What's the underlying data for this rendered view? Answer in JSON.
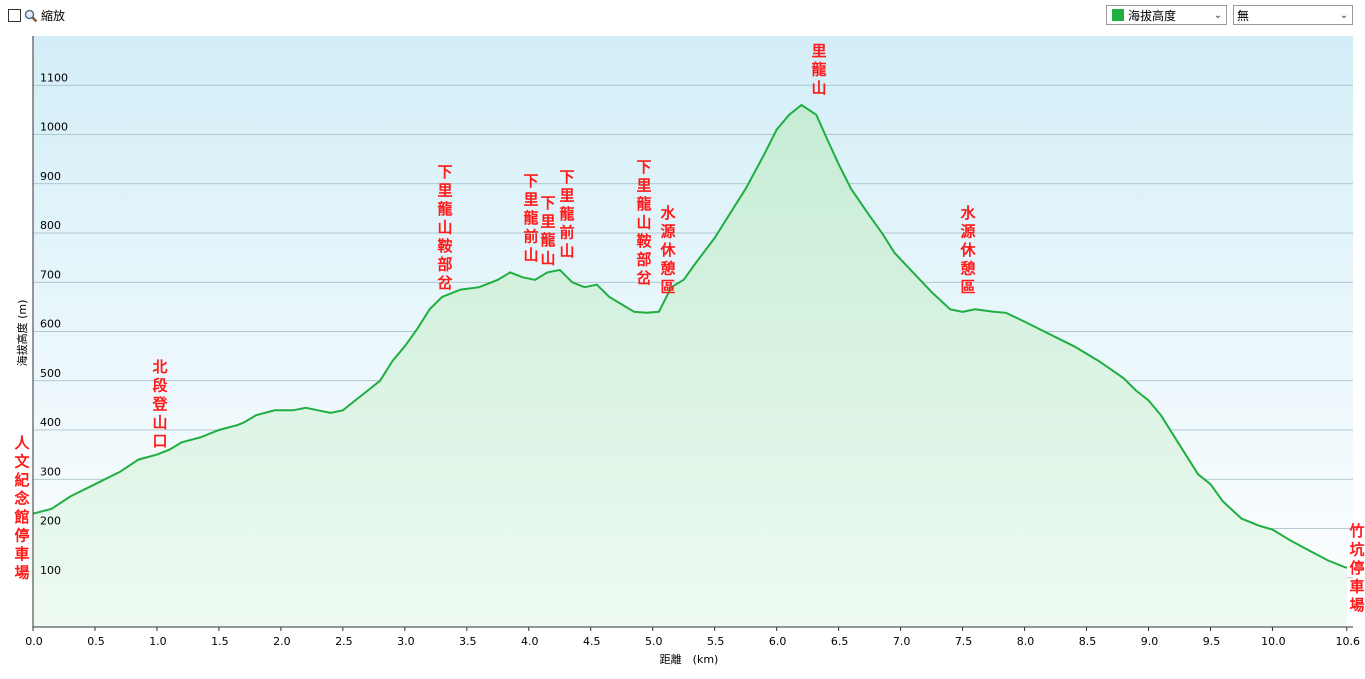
{
  "toolbar": {
    "zoom_label": "縮放",
    "metric_select": "海拔高度",
    "metric_color": "#1fae40",
    "secondary_select": "無"
  },
  "chart_data": {
    "type": "area",
    "xlabel": "距離　(km)",
    "ylabel": "海拔高度 (m)",
    "xlim": [
      0,
      10.65
    ],
    "ylim": [
      0,
      1200
    ],
    "x_ticks": [
      "0.0",
      "0.5",
      "1.0",
      "1.5",
      "2.0",
      "2.5",
      "3.0",
      "3.5",
      "4.0",
      "4.5",
      "5.0",
      "5.5",
      "6.0",
      "6.5",
      "7.0",
      "7.5",
      "8.0",
      "8.5",
      "9.0",
      "9.5",
      "10.0",
      "10.6"
    ],
    "y_ticks": [
      "100",
      "200",
      "300",
      "400",
      "500",
      "600",
      "700",
      "800",
      "900",
      "1000",
      "1100"
    ],
    "line_color": "#1fae40",
    "grid": true,
    "series": [
      {
        "x": [
          0,
          0.15,
          0.3,
          0.5,
          0.7,
          0.85,
          1.0,
          1.1,
          1.2,
          1.35,
          1.5,
          1.65,
          1.7,
          1.8,
          1.95,
          2.0,
          2.1,
          2.2,
          2.3,
          2.4,
          2.5,
          2.6,
          2.7,
          2.8,
          2.9,
          3.0,
          3.1,
          3.2,
          3.3,
          3.45,
          3.6,
          3.75,
          3.85,
          3.95,
          4.05,
          4.15,
          4.25,
          4.35,
          4.45,
          4.55,
          4.65,
          4.75,
          4.85,
          4.95,
          5.05,
          5.15,
          5.25,
          5.35,
          5.5,
          5.6,
          5.75,
          5.9,
          6.0,
          6.1,
          6.2,
          6.32,
          6.4,
          6.5,
          6.6,
          6.75,
          6.85,
          6.95,
          7.1,
          7.25,
          7.4,
          7.5,
          7.6,
          7.75,
          7.85,
          8.0,
          8.2,
          8.4,
          8.6,
          8.8,
          8.9,
          9.0,
          9.1,
          9.25,
          9.4,
          9.5,
          9.6,
          9.75,
          9.9,
          10.0,
          10.15,
          10.3,
          10.45,
          10.6
        ],
        "y": [
          230,
          240,
          265,
          290,
          315,
          340,
          350,
          360,
          375,
          385,
          400,
          410,
          415,
          430,
          440,
          440,
          440,
          445,
          440,
          435,
          440,
          460,
          480,
          500,
          540,
          570,
          605,
          645,
          670,
          685,
          690,
          705,
          720,
          710,
          705,
          720,
          725,
          700,
          690,
          695,
          670,
          655,
          640,
          638,
          640,
          690,
          705,
          740,
          790,
          830,
          890,
          960,
          1010,
          1040,
          1060,
          1040,
          995,
          940,
          890,
          835,
          800,
          760,
          720,
          680,
          645,
          640,
          645,
          640,
          638,
          620,
          595,
          570,
          540,
          505,
          480,
          460,
          430,
          370,
          310,
          290,
          255,
          220,
          205,
          198,
          175,
          155,
          135,
          120
        ]
      }
    ],
    "annotations": [
      {
        "x": 0.0,
        "text": "人文紀念館停車場"
      },
      {
        "x": 1.0,
        "text": "北段登山口"
      },
      {
        "x": 3.35,
        "text": "下里龍山鞍部岔"
      },
      {
        "x": 4.0,
        "text": "下里龍前山"
      },
      {
        "x": 4.15,
        "text": "下里龍山"
      },
      {
        "x": 4.3,
        "text": "下里龍前山"
      },
      {
        "x": 4.95,
        "text": "下里龍山鞍部岔"
      },
      {
        "x": 5.15,
        "text": "水源休憩區"
      },
      {
        "x": 6.32,
        "text": "里龍山"
      },
      {
        "x": 7.5,
        "text": "水源休憩區"
      },
      {
        "x": 10.65,
        "text": "竹坑停車場"
      }
    ]
  }
}
